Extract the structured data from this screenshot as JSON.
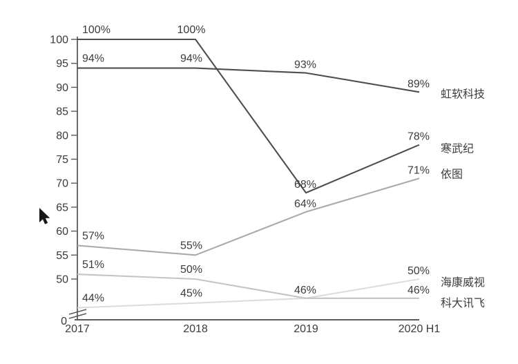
{
  "chart_data": {
    "type": "line",
    "title": "",
    "categories": [
      "2017",
      "2018",
      "2019",
      "2020 H1"
    ],
    "series": [
      {
        "name": "海康威视",
        "values": [
          44,
          45,
          46,
          50
        ],
        "labels": [
          "44%",
          "45%",
          "",
          "50%"
        ],
        "color": "#dcdcdc"
      },
      {
        "name": "科大讯飞",
        "values": [
          51,
          50,
          46,
          46
        ],
        "labels": [
          "51%",
          "50%",
          "46%",
          "46%"
        ],
        "color": "#c4c4c4"
      },
      {
        "name": "依图",
        "values": [
          57,
          55,
          64,
          71
        ],
        "labels": [
          "57%",
          "55%",
          "64%",
          "71%"
        ],
        "color": "#a9a9a9"
      },
      {
        "name": "虹软科技",
        "values": [
          94,
          94,
          93,
          89
        ],
        "labels": [
          "94%",
          "94%",
          "93%",
          "89%"
        ],
        "color": "#4e4e4e"
      },
      {
        "name": "寒武纪",
        "values": [
          100,
          100,
          68,
          78
        ],
        "labels": [
          "100%",
          "100%",
          "68%",
          "78%"
        ],
        "color": "#4e4e4e"
      }
    ],
    "y_axis": {
      "ticks": [
        100,
        95,
        90,
        85,
        80,
        75,
        70,
        65,
        60,
        55,
        50
      ],
      "zero_label": "0",
      "axis_break": true
    },
    "x_axis": {
      "labels": [
        "2017",
        "2018",
        "2019",
        "2020 H1"
      ]
    },
    "legend_position": "right",
    "grid": false,
    "value_suffix": "%"
  },
  "colors": {
    "axis": "#5a5a5a",
    "tick_text": "#3a3a3a",
    "label_text": "#3c3c3c",
    "legend_text": "#3c3c3c",
    "cursor": "#171717"
  },
  "cursor": {
    "icon": "arrow-pointer"
  }
}
